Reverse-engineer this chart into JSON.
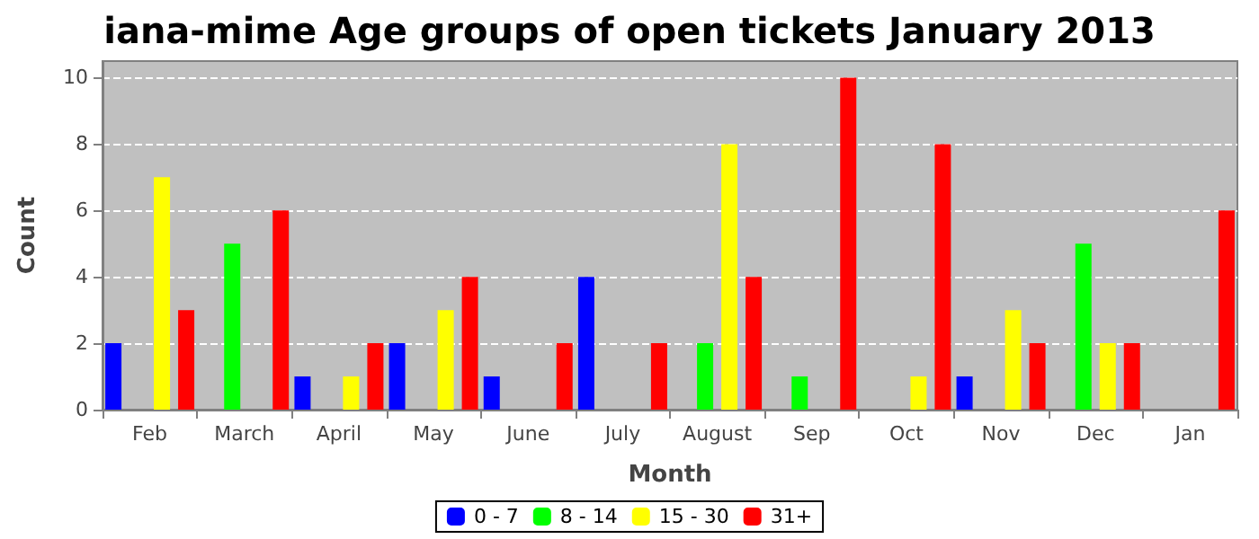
{
  "chart_data": {
    "type": "bar",
    "title": "iana-mime Age groups of open tickets January 2013",
    "xlabel": "Month",
    "ylabel": "Count",
    "categories": [
      "Feb",
      "March",
      "April",
      "May",
      "June",
      "July",
      "August",
      "Sep",
      "Oct",
      "Nov",
      "Dec",
      "Jan"
    ],
    "series": [
      {
        "name": "0 - 7",
        "color": "#0000ff",
        "values": [
          2,
          0,
          1,
          2,
          1,
          4,
          0,
          0,
          0,
          1,
          0,
          0
        ]
      },
      {
        "name": "8 - 14",
        "color": "#00ff00",
        "values": [
          0,
          5,
          0,
          0,
          0,
          0,
          2,
          1,
          0,
          0,
          5,
          0
        ]
      },
      {
        "name": "15 - 30",
        "color": "#ffff00",
        "values": [
          7,
          0,
          1,
          3,
          0,
          0,
          8,
          0,
          1,
          3,
          2,
          0
        ]
      },
      {
        "name": "31+",
        "color": "#ff0000",
        "values": [
          3,
          6,
          2,
          4,
          2,
          2,
          4,
          10,
          8,
          2,
          2,
          6
        ]
      }
    ],
    "ylim": [
      0,
      10.5
    ],
    "yticks": [
      0,
      2,
      4,
      6,
      8,
      10
    ],
    "grid": "y",
    "legend": "bottom"
  }
}
